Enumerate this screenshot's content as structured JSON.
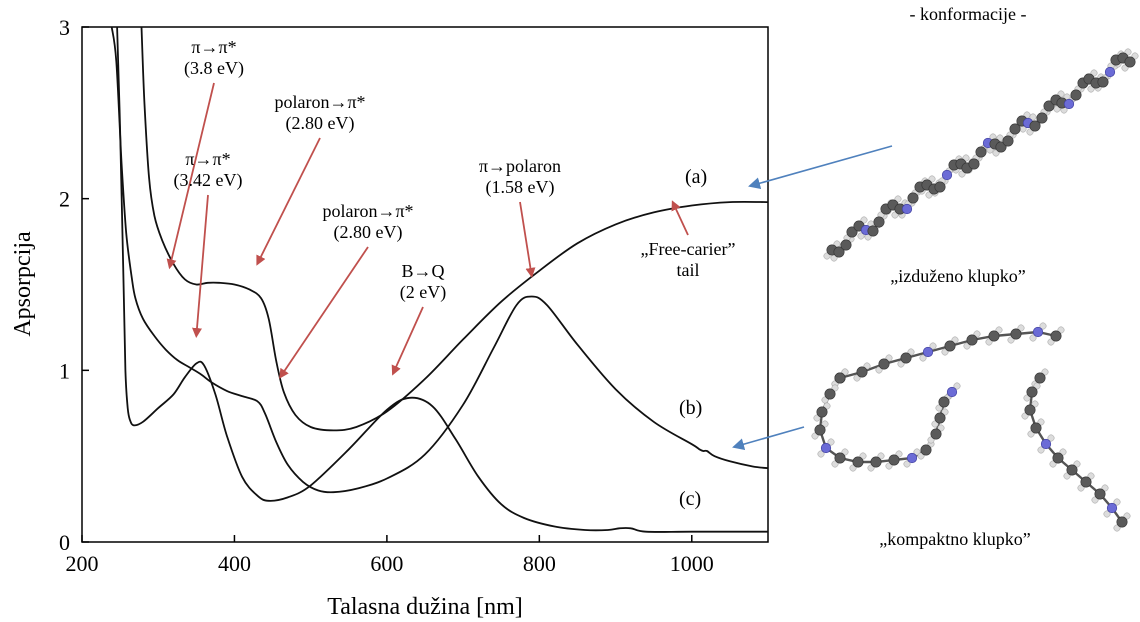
{
  "chart_data": {
    "type": "line",
    "title": "",
    "xlabel": "Talasna dužina [nm]",
    "ylabel": "Apsorpcija",
    "xlim": [
      200,
      1100
    ],
    "ylim": [
      0,
      3
    ],
    "x_ticks": [
      "200",
      "400",
      "600",
      "800",
      "1000"
    ],
    "y_ticks": [
      "0",
      "1",
      "2",
      "3"
    ],
    "grid": false,
    "series": [
      {
        "label": "(a)",
        "points": [
          [
            278,
            3.0
          ],
          [
            282,
            2.55
          ],
          [
            288,
            2.12
          ],
          [
            295,
            1.9
          ],
          [
            305,
            1.76
          ],
          [
            320,
            1.62
          ],
          [
            335,
            1.53
          ],
          [
            350,
            1.5
          ],
          [
            365,
            1.51
          ],
          [
            380,
            1.51
          ],
          [
            400,
            1.5
          ],
          [
            420,
            1.47
          ],
          [
            435,
            1.42
          ],
          [
            445,
            1.3
          ],
          [
            455,
            1.05
          ],
          [
            465,
            0.87
          ],
          [
            480,
            0.74
          ],
          [
            500,
            0.67
          ],
          [
            530,
            0.65
          ],
          [
            560,
            0.67
          ],
          [
            600,
            0.76
          ],
          [
            650,
            0.95
          ],
          [
            700,
            1.18
          ],
          [
            750,
            1.4
          ],
          [
            800,
            1.58
          ],
          [
            850,
            1.74
          ],
          [
            900,
            1.85
          ],
          [
            950,
            1.92
          ],
          [
            1000,
            1.96
          ],
          [
            1050,
            1.98
          ],
          [
            1100,
            1.98
          ]
        ]
      },
      {
        "label": "(b)",
        "points": [
          [
            239,
            3.0
          ],
          [
            245,
            2.8
          ],
          [
            252,
            2.2
          ],
          [
            258,
            1.8
          ],
          [
            265,
            1.55
          ],
          [
            270,
            1.42
          ],
          [
            280,
            1.3
          ],
          [
            295,
            1.2
          ],
          [
            310,
            1.12
          ],
          [
            325,
            1.06
          ],
          [
            340,
            1.02
          ],
          [
            355,
            0.98
          ],
          [
            370,
            0.93
          ],
          [
            390,
            0.88
          ],
          [
            410,
            0.85
          ],
          [
            430,
            0.82
          ],
          [
            440,
            0.75
          ],
          [
            455,
            0.58
          ],
          [
            470,
            0.45
          ],
          [
            490,
            0.35
          ],
          [
            510,
            0.3
          ],
          [
            530,
            0.29
          ],
          [
            560,
            0.31
          ],
          [
            600,
            0.37
          ],
          [
            650,
            0.51
          ],
          [
            700,
            0.8
          ],
          [
            740,
            1.13
          ],
          [
            770,
            1.38
          ],
          [
            790,
            1.43
          ],
          [
            810,
            1.38
          ],
          [
            850,
            1.15
          ],
          [
            900,
            0.89
          ],
          [
            950,
            0.7
          ],
          [
            1000,
            0.57
          ],
          [
            1010,
            0.54
          ],
          [
            1015,
            0.53
          ],
          [
            1020,
            0.53
          ],
          [
            1030,
            0.5
          ],
          [
            1050,
            0.47
          ],
          [
            1080,
            0.44
          ],
          [
            1100,
            0.43
          ]
        ]
      },
      {
        "label": "(c)",
        "points": [
          [
            246,
            3.0
          ],
          [
            250,
            2.4
          ],
          [
            254,
            1.6
          ],
          [
            257,
            1.0
          ],
          [
            260,
            0.78
          ],
          [
            263,
            0.71
          ],
          [
            268,
            0.68
          ],
          [
            280,
            0.7
          ],
          [
            300,
            0.78
          ],
          [
            320,
            0.86
          ],
          [
            335,
            0.96
          ],
          [
            350,
            1.04
          ],
          [
            360,
            1.03
          ],
          [
            375,
            0.86
          ],
          [
            390,
            0.62
          ],
          [
            410,
            0.38
          ],
          [
            430,
            0.27
          ],
          [
            445,
            0.24
          ],
          [
            470,
            0.26
          ],
          [
            500,
            0.33
          ],
          [
            550,
            0.54
          ],
          [
            600,
            0.77
          ],
          [
            630,
            0.84
          ],
          [
            660,
            0.79
          ],
          [
            690,
            0.6
          ],
          [
            720,
            0.38
          ],
          [
            750,
            0.22
          ],
          [
            780,
            0.14
          ],
          [
            820,
            0.09
          ],
          [
            860,
            0.07
          ],
          [
            890,
            0.07
          ],
          [
            905,
            0.08
          ],
          [
            920,
            0.08
          ],
          [
            940,
            0.06
          ],
          [
            1000,
            0.06
          ],
          [
            1100,
            0.06
          ]
        ]
      }
    ],
    "annotations": [
      {
        "line1": "π→π*",
        "line2": "(3.8 eV)",
        "target": [
          315,
          1.6
        ]
      },
      {
        "line1": "polaron→π*",
        "line2": "(2.80 eV)",
        "target": [
          430,
          1.62
        ]
      },
      {
        "line1": "π→π*",
        "line2": "(3.42 eV)",
        "target": [
          350,
          1.2
        ]
      },
      {
        "line1": "polaron→π*",
        "line2": "(2.80 eV)",
        "target": [
          460,
          0.96
        ]
      },
      {
        "line1": "B→Q",
        "line2": "(2 eV)",
        "target": [
          608,
          0.98
        ]
      },
      {
        "line1": "π→polaron",
        "line2": "(1.58 eV)",
        "target": [
          790,
          1.55
        ]
      },
      {
        "line1": "„Free-carier”",
        "line2": "tail",
        "target": [
          975,
          1.98
        ]
      }
    ]
  },
  "side_panel": {
    "heading": "- konformacije -",
    "extended_label": "„izduženo klupko”",
    "compact_label": "„kompaktno klupko”"
  },
  "colors": {
    "annotation_arrow": "#c0504d",
    "pointer_arrow": "#4f81bd",
    "curve": "#111111"
  }
}
